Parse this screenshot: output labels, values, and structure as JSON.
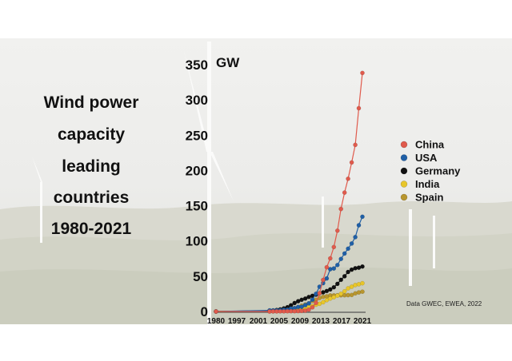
{
  "colors": {
    "China": "#e05a4c",
    "USA": "#1f5fa6",
    "Germany": "#111111",
    "India": "#e8c62a",
    "Spain": "#b8962e"
  },
  "title_lines": [
    "Wind power",
    "capacity",
    "leading",
    "countries",
    "1980-2021"
  ],
  "source_note": "Data  GWEC, EWEA, 2022",
  "chart_data": {
    "type": "line",
    "title": "Wind power capacity leading countries 1980-2021",
    "xlabel": "",
    "ylabel": "",
    "y_unit": "GW",
    "ylim": [
      0,
      350
    ],
    "yticks": [
      0,
      50,
      100,
      150,
      200,
      250,
      300,
      350
    ],
    "x_tick_labels": [
      "1980",
      "1997",
      "2001",
      "2005",
      "2009",
      "2013",
      "2017",
      "2021"
    ],
    "x_tick_positions": [
      1980,
      1997,
      2001,
      2005,
      2009,
      2013,
      2017,
      2021
    ],
    "x": [
      1980,
      1995,
      1996,
      1997,
      1998,
      1999,
      2000,
      2001,
      2002,
      2003,
      2004,
      2005,
      2006,
      2007,
      2008,
      2009,
      2010,
      2011,
      2012,
      2013,
      2014,
      2015,
      2016,
      2017,
      2018,
      2019,
      2020,
      2021
    ],
    "grid": false,
    "legend_position": "right",
    "series": [
      {
        "name": "China",
        "values": [
          0,
          0.04,
          0.08,
          0.15,
          0.2,
          0.27,
          0.35,
          0.4,
          0.47,
          0.57,
          0.76,
          1.3,
          2.6,
          5.9,
          12.2,
          25.8,
          44.7,
          62.7,
          75.3,
          91.4,
          114.6,
          145.4,
          168.7,
          188.2,
          211.4,
          236.3,
          288.3,
          338.3
        ]
      },
      {
        "name": "USA",
        "values": [
          0,
          1.6,
          1.6,
          1.6,
          1.8,
          2.5,
          2.6,
          4.2,
          4.7,
          6.4,
          6.7,
          9.1,
          11.6,
          16.8,
          25.2,
          35.1,
          40.2,
          46.9,
          60.0,
          61.1,
          65.9,
          74.5,
          82.2,
          89.1,
          96.4,
          105.4,
          122.3,
          134.4
        ]
      },
      {
        "name": "Germany",
        "values": [
          0,
          1.1,
          1.5,
          2.1,
          2.9,
          4.4,
          6.1,
          8.8,
          12.0,
          14.6,
          16.6,
          18.4,
          20.6,
          22.2,
          23.9,
          25.8,
          27.2,
          29.1,
          31.3,
          34.3,
          39.2,
          45.0,
          50.0,
          56.1,
          59.3,
          61.4,
          62.2,
          63.8
        ]
      },
      {
        "name": "India",
        "values": [
          0,
          0.6,
          0.8,
          0.9,
          1.0,
          1.1,
          1.2,
          1.5,
          1.7,
          2.1,
          3.0,
          4.4,
          6.3,
          7.8,
          9.6,
          10.9,
          13.1,
          16.1,
          18.4,
          20.2,
          22.5,
          25.1,
          28.7,
          32.8,
          35.1,
          37.5,
          38.6,
          40.1
        ]
      },
      {
        "name": "Spain",
        "values": [
          0,
          0.1,
          0.2,
          0.4,
          0.8,
          1.5,
          2.2,
          3.3,
          4.8,
          6.2,
          8.3,
          10.0,
          11.6,
          15.1,
          16.7,
          19.1,
          20.7,
          21.5,
          22.8,
          22.9,
          23.0,
          23.0,
          23.1,
          23.2,
          23.5,
          25.7,
          27.1,
          28.1
        ]
      }
    ]
  }
}
